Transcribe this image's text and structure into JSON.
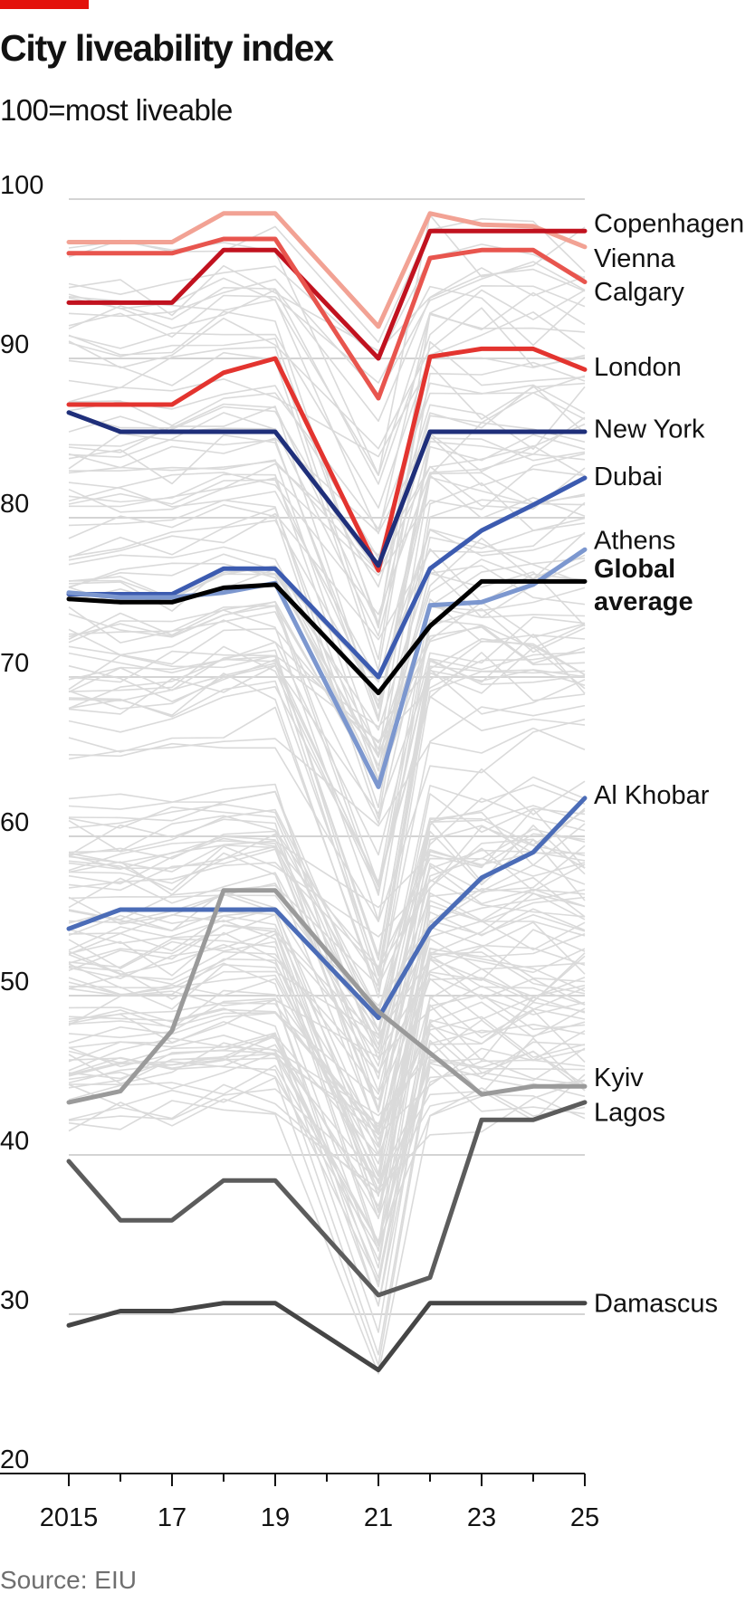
{
  "header": {
    "title": "City liveability index",
    "subtitle": "100=most liveable"
  },
  "footer": {
    "source": "Source: EIU"
  },
  "colors": {
    "brand": "#e3120b",
    "background_lines": "#dadada",
    "global_average": "#000000"
  },
  "chart_data": {
    "type": "line",
    "title": "City liveability index",
    "subtitle": "100=most liveable",
    "xlabel": "",
    "ylabel": "",
    "x": [
      2015,
      2016,
      2017,
      2018,
      2019,
      2020,
      2021,
      2022,
      2023,
      2024,
      2025
    ],
    "xtick_values": [
      2015,
      2017,
      2019,
      2021,
      2023,
      2025
    ],
    "xtick_labels": [
      "2015",
      "17",
      "19",
      "21",
      "23",
      "25"
    ],
    "ylim": [
      20,
      100
    ],
    "yticks": [
      20,
      30,
      40,
      50,
      60,
      70,
      80,
      90,
      100
    ],
    "grid": true,
    "legend": "direct labels at right end of lines",
    "series": [
      {
        "name": "Copenhagen",
        "color": "#f2a294",
        "width": 5,
        "values": [
          97.3,
          97.3,
          97.3,
          99.1,
          99.1,
          null,
          92.0,
          99.1,
          98.4,
          98.3,
          97.0
        ]
      },
      {
        "name": "Vienna",
        "color": "#c1121f",
        "width": 5,
        "values": [
          93.5,
          93.5,
          93.5,
          96.8,
          96.8,
          null,
          90.0,
          98.0,
          98.0,
          98.0,
          98.0
        ]
      },
      {
        "name": "Calgary",
        "color": "#e8554e",
        "width": 5,
        "values": [
          96.6,
          96.6,
          96.6,
          97.5,
          97.5,
          null,
          87.5,
          96.3,
          96.8,
          96.8,
          94.8
        ]
      },
      {
        "name": "London",
        "color": "#e3342f",
        "width": 5,
        "values": [
          87.1,
          87.1,
          87.1,
          89.1,
          90.0,
          null,
          76.7,
          90.1,
          90.6,
          90.6,
          89.3
        ]
      },
      {
        "name": "New York",
        "color": "#1f2f7a",
        "width": 5,
        "values": [
          86.6,
          85.4,
          85.4,
          85.4,
          85.4,
          null,
          77.0,
          85.4,
          85.4,
          85.4,
          85.4
        ]
      },
      {
        "name": "Dubai",
        "color": "#3c5bb0",
        "width": 5,
        "values": [
          75.2,
          75.2,
          75.2,
          76.8,
          76.8,
          null,
          70.0,
          76.8,
          79.2,
          80.8,
          82.5
        ]
      },
      {
        "name": "Athens",
        "color": "#7c97cf",
        "width": 5,
        "values": [
          75.3,
          75.0,
          75.0,
          75.3,
          75.9,
          null,
          63.1,
          74.5,
          74.7,
          75.8,
          78.0
        ]
      },
      {
        "name": "Global average",
        "color": "#000000",
        "width": 5,
        "values": [
          74.9,
          74.7,
          74.7,
          75.6,
          75.8,
          null,
          69.0,
          73.2,
          76.0,
          76.0,
          76.0
        ]
      },
      {
        "name": "Al Khobar",
        "color": "#4b6cb7",
        "width": 5,
        "values": [
          54.2,
          55.4,
          55.4,
          55.4,
          55.4,
          null,
          48.6,
          54.2,
          57.4,
          59.0,
          62.4
        ]
      },
      {
        "name": "Kyiv",
        "color": "#9a9a9a",
        "width": 5,
        "values": [
          43.3,
          44.0,
          47.8,
          56.6,
          56.6,
          null,
          49.0,
          46.4,
          43.8,
          44.3,
          44.3
        ]
      },
      {
        "name": "Lagos",
        "color": "#5c5c5c",
        "width": 5,
        "values": [
          39.6,
          35.9,
          35.9,
          38.4,
          38.4,
          null,
          31.2,
          32.3,
          42.2,
          42.2,
          43.3
        ]
      },
      {
        "name": "Damascus",
        "color": "#454545",
        "width": 5,
        "values": [
          29.3,
          30.2,
          30.2,
          30.7,
          30.7,
          null,
          26.5,
          30.7,
          30.7,
          30.7,
          30.7
        ]
      }
    ],
    "labels": [
      {
        "lines": [
          "Copenhagen"
        ],
        "y": 98.5,
        "bold": false
      },
      {
        "lines": [
          "Vienna"
        ],
        "y": 96.3,
        "bold": false
      },
      {
        "lines": [
          "Calgary"
        ],
        "y": 94.2,
        "bold": false
      },
      {
        "lines": [
          "London"
        ],
        "y": 89.5,
        "bold": false
      },
      {
        "lines": [
          "New York"
        ],
        "y": 85.6,
        "bold": false
      },
      {
        "lines": [
          "Dubai"
        ],
        "y": 82.6,
        "bold": false
      },
      {
        "lines": [
          "Athens"
        ],
        "y": 78.6,
        "bold": false
      },
      {
        "lines": [
          "Global",
          "average"
        ],
        "y": 75.8,
        "bold": true
      },
      {
        "lines": [
          "Al Khobar"
        ],
        "y": 62.6,
        "bold": false
      },
      {
        "lines": [
          "Kyiv"
        ],
        "y": 44.9,
        "bold": false
      },
      {
        "lines": [
          "Lagos"
        ],
        "y": 42.7,
        "bold": false
      },
      {
        "lines": [
          "Damascus"
        ],
        "y": 30.7,
        "bold": false
      }
    ]
  }
}
